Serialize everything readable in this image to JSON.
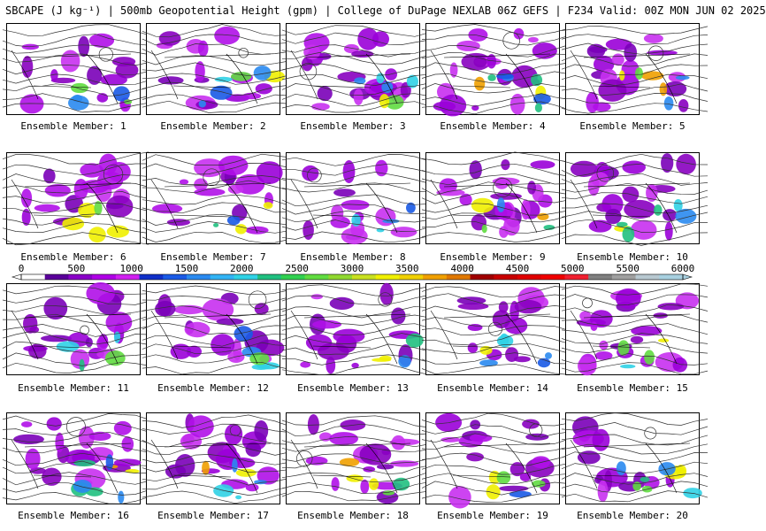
{
  "header": {
    "title": "SBCAPE (J kg⁻¹) | 500mb Geopotential Height (gpm) | College of DuPage NEXLAB 06Z GEFS | F234 Valid: 00Z MON JUN 02 2025"
  },
  "colorbar": {
    "ticks": [
      "0",
      "500",
      "1000",
      "1500",
      "2000",
      "2500",
      "3000",
      "3500",
      "4000",
      "4500",
      "5000",
      "5500",
      "6000"
    ],
    "tick_values": [
      0,
      500,
      1000,
      1500,
      2000,
      2500,
      3000,
      3500,
      4000,
      4500,
      5000,
      5500,
      6000
    ],
    "range": [
      0,
      6000
    ],
    "colors": [
      "#ffffff",
      "#5a009a",
      "#8a00c8",
      "#b000e6",
      "#d020f0",
      "#1030c8",
      "#1a5ae6",
      "#2a8af0",
      "#32b4f5",
      "#30d2e6",
      "#20c080",
      "#30d050",
      "#60dc40",
      "#90d830",
      "#c8e020",
      "#f0f000",
      "#f0d000",
      "#f0a000",
      "#e07800",
      "#a00000",
      "#c80000",
      "#e00000",
      "#f00000",
      "#f02030",
      "#808080",
      "#a0a0a0",
      "#b8c8d0",
      "#a8d0e0"
    ]
  },
  "panels": [
    {
      "label": "Ensemble Member: 1"
    },
    {
      "label": "Ensemble Member: 2"
    },
    {
      "label": "Ensemble Member: 3"
    },
    {
      "label": "Ensemble Member: 4"
    },
    {
      "label": "Ensemble Member: 5"
    },
    {
      "label": "Ensemble Member: 6"
    },
    {
      "label": "Ensemble Member: 7"
    },
    {
      "label": "Ensemble Member: 8"
    },
    {
      "label": "Ensemble Member: 9"
    },
    {
      "label": "Ensemble Member: 10"
    },
    {
      "label": "Ensemble Member: 11"
    },
    {
      "label": "Ensemble Member: 12"
    },
    {
      "label": "Ensemble Member: 13"
    },
    {
      "label": "Ensemble Member: 14"
    },
    {
      "label": "Ensemble Member: 15"
    },
    {
      "label": "Ensemble Member: 16"
    },
    {
      "label": "Ensemble Member: 17"
    },
    {
      "label": "Ensemble Member: 18"
    },
    {
      "label": "Ensemble Member: 19"
    },
    {
      "label": "Ensemble Member: 20"
    }
  ]
}
